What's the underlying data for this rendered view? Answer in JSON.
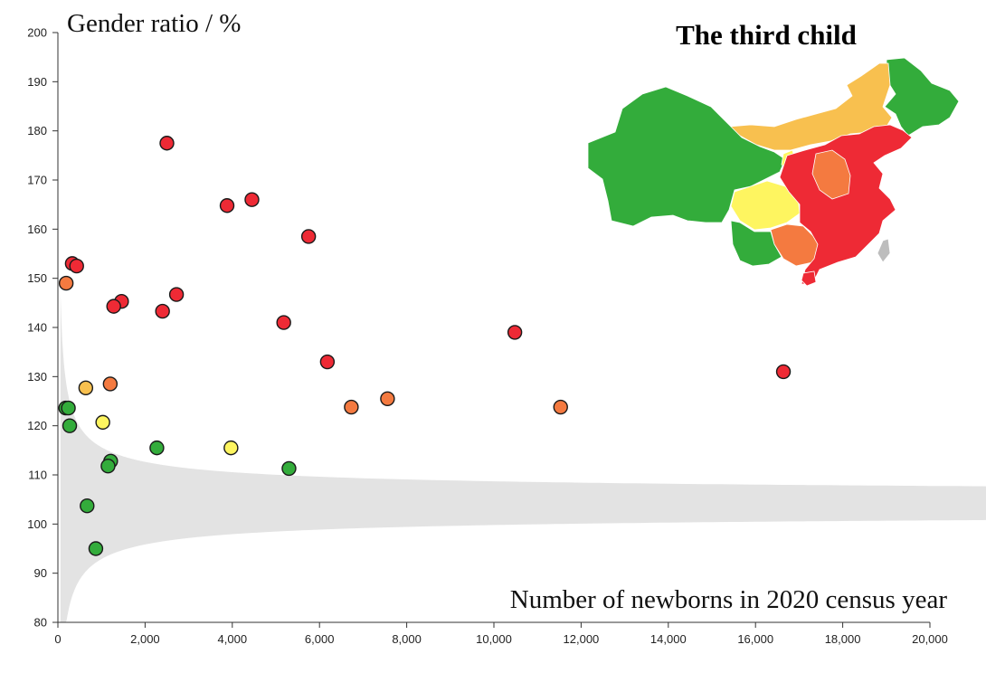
{
  "chart_data": {
    "type": "scatter",
    "title": "The third child",
    "xlabel": "Number of newborns in 2020 census year",
    "ylabel": "Gender ratio / %",
    "xlim": [
      0,
      20000
    ],
    "ylim": [
      80,
      200
    ],
    "x_ticks": [
      "0",
      "2,000",
      "4,000",
      "6,000",
      "8,000",
      "10,000",
      "12,000",
      "14,000",
      "16,000",
      "18,000",
      "20,000"
    ],
    "y_ticks": [
      "80",
      "90",
      "100",
      "110",
      "120",
      "130",
      "140",
      "150",
      "160",
      "170",
      "180",
      "190",
      "200"
    ],
    "grid": false,
    "band": {
      "description": "gray confidence band around normal sex ratio",
      "center": 105,
      "color": "#e3e3e3"
    },
    "colors": {
      "red": "#ee2a35",
      "orange": "#f47a40",
      "light_orange": "#f8c04f",
      "yellow": "#fef560",
      "green": "#33ac3b"
    },
    "points": [
      {
        "x": 2500,
        "y": 177.5,
        "color": "red"
      },
      {
        "x": 4450,
        "y": 166,
        "color": "red"
      },
      {
        "x": 3880,
        "y": 164.8,
        "color": "red"
      },
      {
        "x": 5750,
        "y": 158.5,
        "color": "red"
      },
      {
        "x": 330,
        "y": 153,
        "color": "red"
      },
      {
        "x": 430,
        "y": 152.5,
        "color": "red"
      },
      {
        "x": 190,
        "y": 149,
        "color": "orange"
      },
      {
        "x": 2720,
        "y": 146.7,
        "color": "red"
      },
      {
        "x": 1460,
        "y": 145.3,
        "color": "red"
      },
      {
        "x": 1280,
        "y": 144.3,
        "color": "red"
      },
      {
        "x": 2400,
        "y": 143.3,
        "color": "red"
      },
      {
        "x": 5180,
        "y": 141,
        "color": "red"
      },
      {
        "x": 10480,
        "y": 139,
        "color": "red"
      },
      {
        "x": 6180,
        "y": 133,
        "color": "red"
      },
      {
        "x": 16640,
        "y": 131,
        "color": "red"
      },
      {
        "x": 1200,
        "y": 128.5,
        "color": "orange"
      },
      {
        "x": 640,
        "y": 127.7,
        "color": "light_orange"
      },
      {
        "x": 7560,
        "y": 125.5,
        "color": "orange"
      },
      {
        "x": 6730,
        "y": 123.8,
        "color": "orange"
      },
      {
        "x": 11530,
        "y": 123.8,
        "color": "orange"
      },
      {
        "x": 180,
        "y": 123.6,
        "color": "green"
      },
      {
        "x": 240,
        "y": 123.6,
        "color": "green"
      },
      {
        "x": 1030,
        "y": 120.7,
        "color": "yellow"
      },
      {
        "x": 270,
        "y": 120,
        "color": "green"
      },
      {
        "x": 2270,
        "y": 115.5,
        "color": "green"
      },
      {
        "x": 3970,
        "y": 115.5,
        "color": "yellow"
      },
      {
        "x": 1210,
        "y": 112.8,
        "color": "green"
      },
      {
        "x": 1150,
        "y": 111.8,
        "color": "green"
      },
      {
        "x": 5300,
        "y": 111.3,
        "color": "green"
      },
      {
        "x": 670,
        "y": 103.7,
        "color": "green"
      },
      {
        "x": 870,
        "y": 95,
        "color": "green"
      }
    ]
  }
}
